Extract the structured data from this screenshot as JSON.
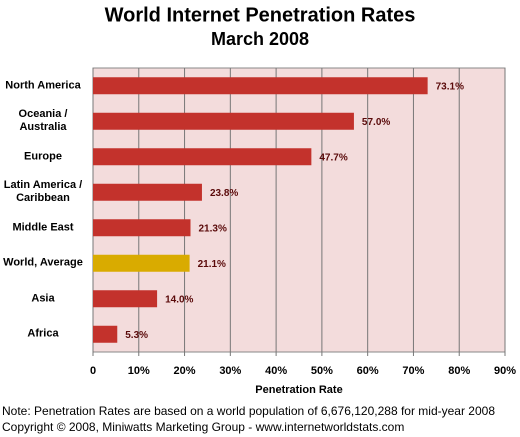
{
  "chart_data": {
    "type": "bar",
    "orientation": "horizontal",
    "title": "World Internet Penetration Rates",
    "subtitle": "March 2008",
    "categories": [
      "North America",
      "Oceania  /\nAustralia",
      "Europe",
      "Latin America /\nCaribbean",
      "Middle East",
      "World, Average",
      "Asia",
      "Africa"
    ],
    "values": [
      73.1,
      57.0,
      47.7,
      23.8,
      21.3,
      21.1,
      14.0,
      5.3
    ],
    "value_labels": [
      "73.1%",
      "57.0%",
      "47.7%",
      "23.8%",
      "21.3%",
      "21.1%",
      "14.0%",
      "5.3%"
    ],
    "colors": [
      "#c3322c",
      "#c3322c",
      "#c3322c",
      "#c3322c",
      "#c3322c",
      "#d9ab00",
      "#c3322c",
      "#c3322c"
    ],
    "xlabel": "Penetration Rate",
    "xlim": [
      0,
      90
    ],
    "xticks": [
      0,
      {
        "value": 10,
        "label": "10%"
      },
      {
        "value": 20,
        "label": "20%"
      },
      {
        "value": 30,
        "label": "30%"
      },
      {
        "value": 40,
        "label": "40%"
      },
      {
        "value": 50,
        "label": "50%"
      },
      {
        "value": 60,
        "label": "60%"
      },
      {
        "value": 70,
        "label": "70%"
      },
      {
        "value": 80,
        "label": "80%"
      },
      {
        "value": 90,
        "label": "90%"
      }
    ],
    "grid": true,
    "notes": [
      "Note: Penetration Rates are based on a world population of 6,676,120,288 for mid-year 2008",
      "Copyright © 2008, Miniwatts Marketing Group - www.internetworldstats.com"
    ]
  }
}
